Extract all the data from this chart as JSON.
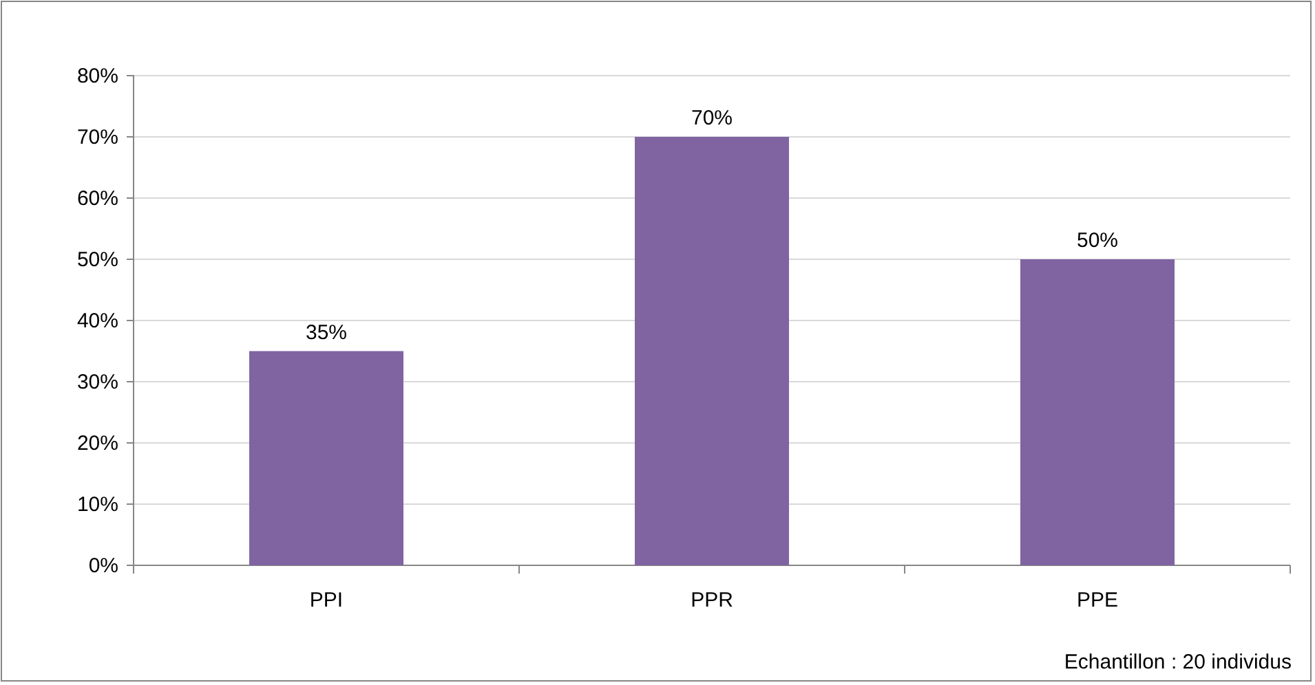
{
  "chart_data": {
    "type": "bar",
    "categories": [
      "PPI",
      "PPR",
      "PPE"
    ],
    "values": [
      35,
      70,
      50
    ],
    "color": "#8064a2",
    "value_labels": [
      "35%",
      "70%",
      "50%"
    ],
    "ylim": [
      0,
      80
    ],
    "yticks": [
      {
        "value": 0,
        "label": "0%"
      },
      {
        "value": 10,
        "label": "10%"
      },
      {
        "value": 20,
        "label": "20%"
      },
      {
        "value": 30,
        "label": "30%"
      },
      {
        "value": 40,
        "label": "40%"
      },
      {
        "value": 50,
        "label": "50%"
      },
      {
        "value": 60,
        "label": "60%"
      },
      {
        "value": 70,
        "label": "70%"
      },
      {
        "value": 80,
        "label": "80%"
      }
    ],
    "grid": "y",
    "annotations": [
      "Echantillon : 20 individus"
    ]
  }
}
